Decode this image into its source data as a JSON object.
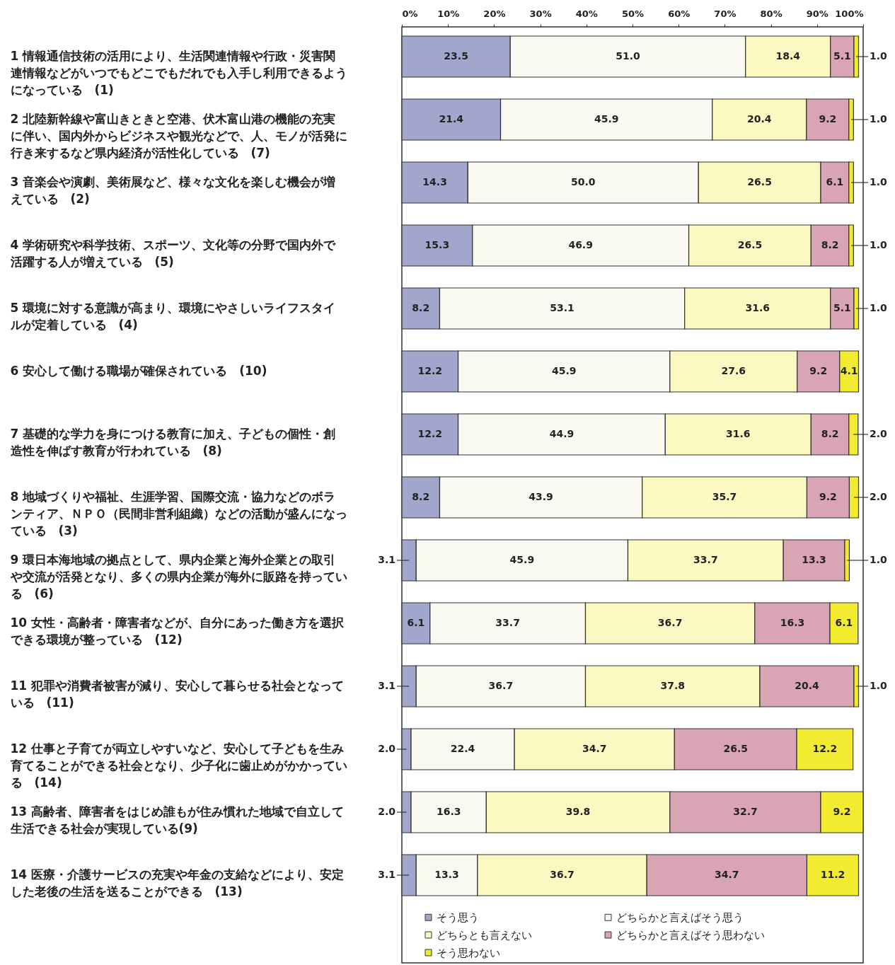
{
  "chart_data": {
    "type": "bar",
    "orientation": "horizontal",
    "stacked": true,
    "categories": [
      "1 情報通信技術の活用により、生活関連情報や行政・災害関連情報などがいつでもどこでもだれでも入手し利用できるようになっている　(1)",
      "2 北陸新幹線や富山きときと空港、伏木富山港の機能の充実に伴い、国内外からビジネスや観光などで、人、モノが活発に行き来するなど県内経済が活性化している　(7)",
      "3 音楽会や演劇、美術展など、様々な文化を楽しむ機会が増えている　(2)",
      "4 学術研究や科学技術、スポーツ、文化等の分野で国内外で活躍する人が増えている　(5)",
      "5 環境に対する意識が高まり、環境にやさしいライフスタイルが定着している　(4)",
      "6 安心して働ける職場が確保されている　(10)",
      "7 基礎的な学力を身につける教育に加え、子どもの個性・創造性を伸ばす教育が行われている　(8)",
      "8 地域づくりや福祉、生涯学習、国際交流・協力などのボランティア、ＮＰＯ（民間非営利組織）などの活動が盛んになっている　(3)",
      "9 環日本海地域の拠点として、県内企業と海外企業との取引や交流が活発となり、多くの県内企業が海外に販路を持っている　(6)",
      "10 女性・高齢者・障害者などが、自分にあった働き方を選択できる環境が整っている　(12)",
      "11 犯罪や消費者被害が減り、安心して暮らせる社会となっている　(11)",
      "12 仕事と子育てが両立しやすいなど、安心して子どもを生み育てることができる社会となり、少子化に歯止めがかかっている　(14)",
      "13 高齢者、障害者をはじめ誰もが住み慣れた地域で自立して生活できる社会が実現している(9)",
      "14 医療・介護サービスの充実や年金の支給などにより、安定した老後の生活を送ることができる　(13)"
    ],
    "series": [
      {
        "name": "そう思う",
        "color": "#a0a6cc",
        "values": [
          23.5,
          21.4,
          14.3,
          15.3,
          8.2,
          12.2,
          12.2,
          8.2,
          3.1,
          6.1,
          3.1,
          2.0,
          2.0,
          3.1
        ],
        "value_labels": [
          "23.5",
          "21.4",
          "14.3",
          "15.3",
          "8.2",
          "12.2",
          "12.2",
          "8.2",
          "3.1",
          "6.1",
          "3.1",
          "2.0",
          "2.0",
          "3.1"
        ]
      },
      {
        "name": "どちらかと言えばそう思う",
        "color": "#f9f9f1",
        "values": [
          51.0,
          45.9,
          50.0,
          46.9,
          53.1,
          45.9,
          44.9,
          43.9,
          45.9,
          33.7,
          36.7,
          22.4,
          16.3,
          13.3
        ],
        "value_labels": [
          "51.0",
          "45.9",
          "50.0",
          "46.9",
          "53.1",
          "45.9",
          "44.9",
          "43.9",
          "45.9",
          "33.7",
          "36.7",
          "22.4",
          "16.3",
          "13.3"
        ]
      },
      {
        "name": "どちらとも言えない",
        "color": "#fbf8c2",
        "values": [
          18.4,
          20.4,
          26.5,
          26.5,
          31.6,
          27.6,
          31.6,
          35.7,
          33.7,
          36.7,
          37.8,
          34.7,
          39.8,
          36.7
        ],
        "value_labels": [
          "18.4",
          "20.4",
          "26.5",
          "26.5",
          "31.6",
          "27.6",
          "31.6",
          "35.7",
          "33.7",
          "36.7",
          "37.8",
          "34.7",
          "39.8",
          "36.7"
        ]
      },
      {
        "name": "どちらかと言えばそう思わない",
        "color": "#d9a4b4",
        "values": [
          5.1,
          9.2,
          6.1,
          8.2,
          5.1,
          9.2,
          8.2,
          9.2,
          13.3,
          16.3,
          20.4,
          26.5,
          32.7,
          34.7
        ],
        "value_labels": [
          "5.1",
          "9.2",
          "6.1",
          "8.2",
          "5.1",
          "9.2",
          "8.2",
          "9.2",
          "13.3",
          "16.3",
          "20.4",
          "26.5",
          "32.7",
          "34.7"
        ]
      },
      {
        "name": "そう思わない",
        "color": "#f3eb30",
        "values": [
          1.0,
          1.0,
          1.0,
          1.0,
          1.0,
          4.1,
          2.0,
          2.0,
          1.0,
          6.1,
          1.0,
          12.2,
          9.2,
          11.2
        ],
        "value_labels": [
          "1.0",
          "1.0",
          "1.0",
          "1.0",
          "1.0",
          "4.1",
          "2.0",
          "2.0",
          "1.0",
          "6.1",
          "1.0",
          "12.2",
          "9.2",
          "11.2"
        ]
      }
    ],
    "xlim": [
      0,
      100
    ],
    "xticks": [
      {
        "value": 0,
        "label": "0%"
      },
      {
        "value": 10,
        "label": "10%"
      },
      {
        "value": 20,
        "label": "20%"
      },
      {
        "value": 30,
        "label": "30%"
      },
      {
        "value": 40,
        "label": "40%"
      },
      {
        "value": 50,
        "label": "50%"
      },
      {
        "value": 60,
        "label": "60%"
      },
      {
        "value": 70,
        "label": "70%"
      },
      {
        "value": 80,
        "label": "80%"
      },
      {
        "value": 90,
        "label": "90%"
      },
      {
        "value": 100,
        "label": "100%"
      }
    ],
    "legend": "bottom",
    "grid": false
  }
}
